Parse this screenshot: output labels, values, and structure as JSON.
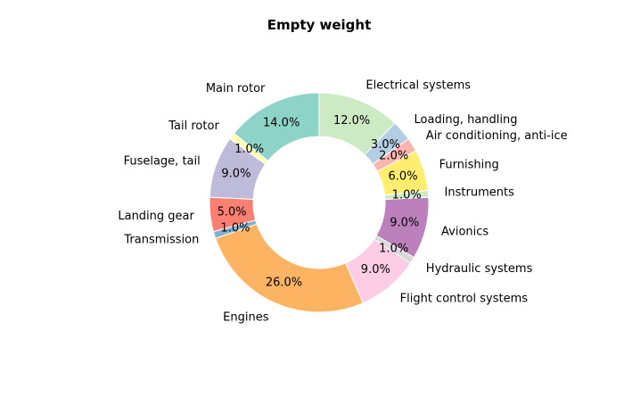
{
  "chart_data": {
    "type": "pie",
    "title": "Empty weight",
    "categories": [
      "Main rotor",
      "Tail rotor",
      "Fuselage, tail",
      "Landing gear",
      "Transmission",
      "Engines",
      "Flight control systems",
      "Hydraulic systems",
      "Avionics",
      "Instruments",
      "Furnishing",
      "Air conditioning, anti-ice",
      "Loading, handling",
      "Electrical systems"
    ],
    "values": [
      14,
      1,
      9,
      5,
      1,
      26,
      9,
      1,
      9,
      1,
      6,
      2,
      3,
      12
    ],
    "value_labels": [
      "14.0%",
      "1.0%",
      "9.0%",
      "5.0%",
      "1.0%",
      "26.0%",
      "9.0%",
      "1.0%",
      "9.0%",
      "1.0%",
      "6.0%",
      "2.0%",
      "3.0%",
      "12.0%"
    ],
    "colors": [
      "#8dd3c7",
      "#ffffb3",
      "#bebada",
      "#fb8072",
      "#80b1d3",
      "#fdb462",
      "#fccde5",
      "#d9d9d9",
      "#bc80bd",
      "#ccebc5",
      "#ffed6f",
      "#fbb4ae",
      "#b3cde3",
      "#ccebc5"
    ],
    "donut": true,
    "start_angle_deg": 90,
    "direction": "counterclockwise",
    "legend": "none"
  }
}
